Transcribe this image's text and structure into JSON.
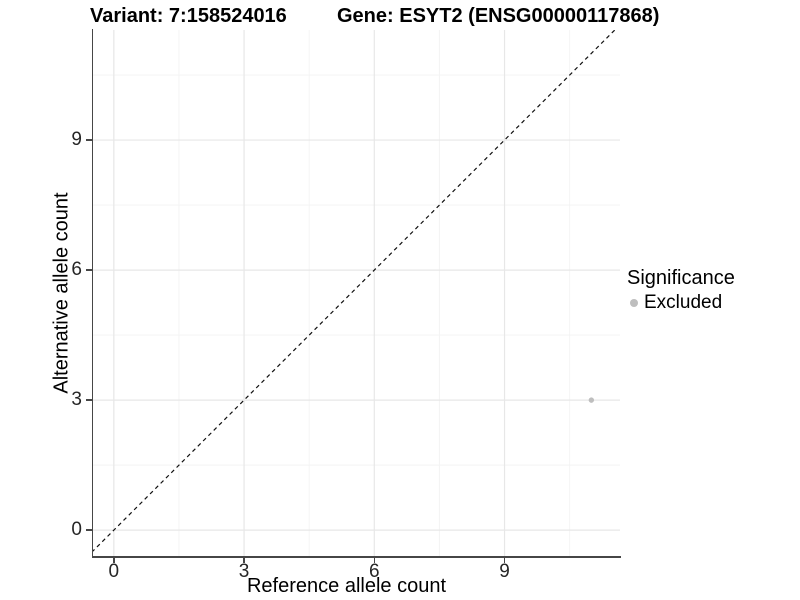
{
  "chart_data": {
    "type": "scatter",
    "title_variant": "Variant: 7:158524016",
    "title_gene": "Gene: ESYT2 (ENSG00000117868)",
    "xlabel": "Reference allele count",
    "ylabel": "Alternative allele count",
    "x_ticks": [
      0,
      3,
      6,
      9
    ],
    "y_ticks": [
      0,
      3,
      6,
      9
    ],
    "x_minor_gridlines": [
      1.5,
      4.5,
      7.5,
      10.5
    ],
    "y_minor_gridlines": [
      1.5,
      4.5,
      7.5,
      10.5
    ],
    "xlim": [
      -0.48,
      11.66
    ],
    "ylim": [
      -0.62,
      11.54
    ],
    "grid": "major+minor",
    "legend": {
      "title": "Significance",
      "position": "right",
      "entries": [
        {
          "label": "Excluded",
          "color": "#bebebe"
        }
      ]
    },
    "series": [
      {
        "name": "Excluded",
        "color": "#bebebe",
        "points": [
          {
            "x": 11,
            "y": 3
          }
        ]
      }
    ],
    "reference_line": {
      "kind": "identity y=x",
      "style": "dashed",
      "color": "#111111"
    }
  },
  "colors": {
    "background": "#ffffff",
    "grid_major": "#e7e7e7",
    "grid_minor": "#f3f3f3",
    "axis_line": "#464646",
    "point": "#bebebe",
    "title_text": "#000000",
    "tick_text": "#262626"
  }
}
